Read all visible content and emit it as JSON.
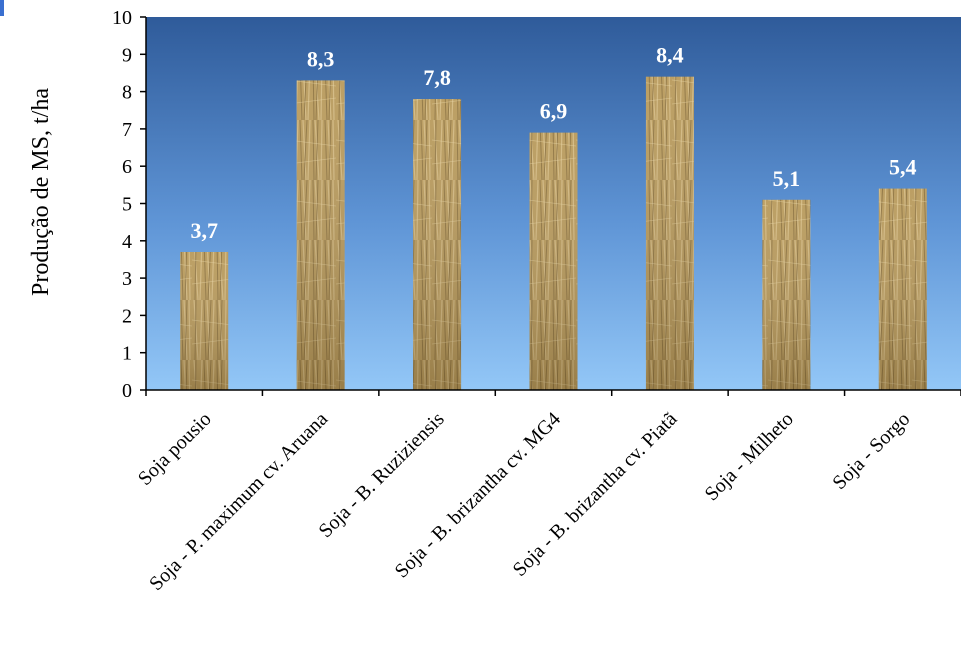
{
  "chart_data": {
    "type": "bar",
    "title": "",
    "xlabel": "",
    "ylabel": "Produção de MS, t/ha",
    "ylim": [
      0,
      10
    ],
    "yticks": [
      0,
      1,
      2,
      3,
      4,
      5,
      6,
      7,
      8,
      9,
      10
    ],
    "categories": [
      "Soja pousio",
      "Soja - P. maximum cv. Aruana",
      "Soja - B. Ruziziensis",
      "Soja - B. brizantha cv. MG4",
      "Soja - B. brizantha cv. Piatã",
      "Soja - Milheto",
      "Soja - Sorgo"
    ],
    "values": [
      3.7,
      8.3,
      7.8,
      6.9,
      8.4,
      5.1,
      5.4
    ],
    "value_labels": [
      "3,7",
      "8,3",
      "7,8",
      "6,9",
      "8,4",
      "5,1",
      "5,4"
    ],
    "grid": false,
    "legend": "none",
    "colors": {
      "plot_top": "#2f5b9a",
      "plot_bottom": "#8fc3f5",
      "bar_straw": "#b89a5c"
    }
  }
}
